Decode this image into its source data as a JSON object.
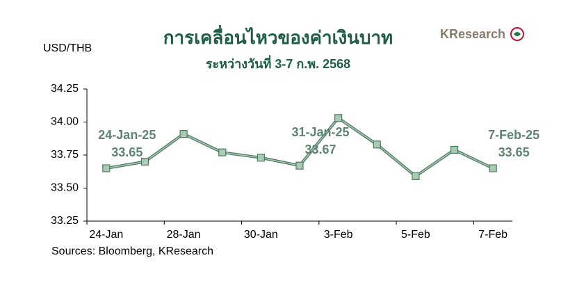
{
  "chart_data": {
    "type": "line",
    "title": "การเคลื่อนไหวของค่าเงินบาท",
    "subtitle": "ระหว่างวันที่ 3-7 ก.พ. 2568",
    "y_label": "USD/THB",
    "source": "Sources: Bloomberg, KResearch",
    "logo": "KResearch",
    "categories": [
      "24-Jan",
      null,
      "28-Jan",
      null,
      "30-Jan",
      null,
      "3-Feb",
      null,
      "5-Feb",
      null,
      "7-Feb"
    ],
    "values": [
      33.65,
      33.7,
      33.91,
      33.77,
      33.73,
      33.67,
      34.03,
      33.83,
      33.59,
      33.79,
      33.65
    ],
    "point_labels": [
      "24-Jan-25",
      null,
      null,
      null,
      null,
      "31-Jan-25",
      null,
      null,
      null,
      null,
      "7-Feb-25"
    ],
    "color": "#4f7a62",
    "marker_color": "#a9cbb4",
    "ylim": [
      33.25,
      34.25
    ],
    "yticks": [
      33.25,
      {
        "value": 33.5,
        "label": "33.50"
      },
      33.75,
      {
        "value": 34.0,
        "label": "34.00"
      },
      34.25
    ],
    "grid": false
  }
}
